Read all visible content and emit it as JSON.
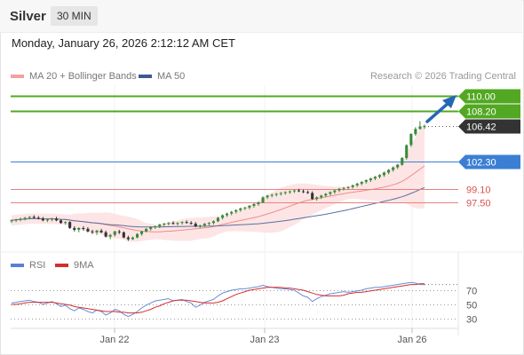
{
  "header": {
    "symbol": "Silver",
    "interval": "30 MIN",
    "datetime": "Monday, January 26, 2026 2:12:12 AM CET"
  },
  "legend": {
    "ma20_label": "MA 20 + Bollinger Bands",
    "ma50_label": "MA 50",
    "rsi_label": "RSI",
    "ma9_label": "9MA"
  },
  "credit": "Research © 2026 Trading Central",
  "colors": {
    "target": "#52a822",
    "support": "#3b7fd4",
    "resistance_low": "#e8827f",
    "current": "#333333",
    "bollinger_fill": "#fde0e0",
    "ma20": "#f08c8a",
    "ma50": "#5c6f9e",
    "bull": "#3a8a3a",
    "bear": "#333333",
    "rsi": "#6b8bd6",
    "rsi_ma": "#d32f2f",
    "arrow": "#2566b7"
  },
  "chart_data": [
    {
      "type": "candlestick",
      "yaxis_visible": false,
      "levels": [
        {
          "value": 110.0,
          "label": "110.00",
          "kind": "target"
        },
        {
          "value": 108.2,
          "label": "108.20",
          "kind": "target"
        },
        {
          "value": 106.42,
          "label": "106.42",
          "kind": "current"
        },
        {
          "value": 102.3,
          "label": "102.30",
          "kind": "support"
        },
        {
          "value": 99.1,
          "label": "99.10",
          "kind": "support-minor"
        },
        {
          "value": 97.5,
          "label": "97.50",
          "kind": "support-minor"
        }
      ],
      "x_tick_labels": [
        "Jan 22",
        "Jan 23",
        "Jan 26"
      ],
      "candles": [
        [
          95.3,
          95.5,
          95.1,
          95.4
        ],
        [
          95.4,
          95.6,
          95.2,
          95.5
        ],
        [
          95.5,
          95.7,
          95.3,
          95.6
        ],
        [
          95.6,
          95.8,
          95.4,
          95.7
        ],
        [
          95.7,
          95.9,
          95.5,
          95.8
        ],
        [
          95.8,
          96.0,
          95.6,
          95.7
        ],
        [
          95.7,
          95.9,
          95.5,
          95.6
        ],
        [
          95.6,
          95.8,
          95.3,
          95.4
        ],
        [
          95.4,
          95.6,
          95.2,
          95.5
        ],
        [
          95.5,
          95.7,
          95.3,
          95.6
        ],
        [
          95.6,
          95.8,
          95.3,
          95.4
        ],
        [
          95.4,
          95.5,
          95.0,
          95.1
        ],
        [
          95.1,
          95.3,
          94.9,
          95.2
        ],
        [
          95.2,
          95.3,
          94.4,
          94.5
        ],
        [
          94.5,
          94.7,
          94.1,
          94.3
        ],
        [
          94.3,
          94.6,
          94.0,
          94.5
        ],
        [
          94.5,
          94.7,
          94.2,
          94.4
        ],
        [
          94.4,
          94.6,
          94.0,
          94.1
        ],
        [
          94.1,
          94.3,
          93.8,
          94.0
        ],
        [
          94.0,
          94.3,
          93.7,
          94.2
        ],
        [
          94.2,
          94.4,
          93.9,
          94.0
        ],
        [
          94.0,
          94.2,
          93.4,
          93.5
        ],
        [
          93.5,
          93.8,
          93.2,
          93.7
        ],
        [
          93.7,
          94.2,
          93.5,
          94.1
        ],
        [
          94.1,
          94.3,
          93.8,
          94.0
        ],
        [
          94.0,
          94.1,
          93.3,
          93.4
        ],
        [
          93.4,
          93.6,
          93.0,
          93.2
        ],
        [
          93.2,
          93.5,
          93.1,
          93.4
        ],
        [
          93.4,
          93.9,
          93.3,
          93.8
        ],
        [
          93.8,
          94.2,
          93.6,
          94.1
        ],
        [
          94.1,
          94.5,
          94.0,
          94.4
        ],
        [
          94.4,
          94.7,
          94.2,
          94.6
        ],
        [
          94.6,
          94.8,
          94.4,
          94.7
        ],
        [
          94.7,
          95.0,
          94.5,
          94.9
        ],
        [
          94.9,
          95.1,
          94.7,
          95.0
        ],
        [
          95.0,
          95.2,
          94.8,
          95.1
        ],
        [
          95.1,
          95.3,
          94.9,
          95.0
        ],
        [
          95.0,
          95.2,
          94.8,
          95.1
        ],
        [
          95.1,
          95.3,
          94.9,
          95.2
        ],
        [
          95.2,
          95.4,
          95.0,
          95.1
        ],
        [
          95.1,
          95.3,
          94.9,
          95.0
        ],
        [
          95.0,
          95.2,
          94.6,
          94.7
        ],
        [
          94.7,
          94.9,
          94.5,
          94.8
        ],
        [
          94.8,
          95.1,
          94.6,
          95.0
        ],
        [
          95.0,
          95.2,
          94.8,
          95.1
        ],
        [
          95.1,
          95.4,
          94.9,
          95.3
        ],
        [
          95.3,
          95.8,
          95.2,
          95.7
        ],
        [
          95.7,
          96.1,
          95.5,
          96.0
        ],
        [
          96.0,
          96.3,
          95.8,
          96.2
        ],
        [
          96.2,
          96.5,
          96.0,
          96.4
        ],
        [
          96.4,
          96.7,
          96.2,
          96.6
        ],
        [
          96.6,
          96.9,
          96.4,
          96.8
        ],
        [
          96.8,
          97.0,
          96.6,
          96.9
        ],
        [
          96.9,
          97.2,
          96.7,
          97.1
        ],
        [
          97.1,
          97.4,
          96.9,
          97.3
        ],
        [
          97.3,
          97.6,
          97.1,
          97.5
        ],
        [
          97.5,
          98.2,
          97.4,
          98.1
        ],
        [
          98.1,
          98.4,
          97.9,
          98.3
        ],
        [
          98.3,
          98.5,
          98.1,
          98.4
        ],
        [
          98.4,
          98.6,
          98.2,
          98.5
        ],
        [
          98.5,
          98.7,
          98.3,
          98.6
        ],
        [
          98.6,
          98.8,
          98.4,
          98.7
        ],
        [
          98.7,
          98.9,
          98.5,
          98.8
        ],
        [
          98.8,
          99.0,
          98.6,
          98.9
        ],
        [
          98.9,
          99.1,
          98.7,
          98.8
        ],
        [
          98.8,
          99.0,
          98.6,
          98.7
        ],
        [
          98.7,
          98.9,
          98.5,
          98.6
        ],
        [
          98.6,
          98.8,
          97.8,
          97.9
        ],
        [
          97.9,
          98.2,
          97.7,
          98.1
        ],
        [
          98.1,
          98.4,
          97.9,
          98.3
        ],
        [
          98.3,
          98.6,
          98.1,
          98.5
        ],
        [
          98.5,
          98.8,
          98.3,
          98.7
        ],
        [
          98.7,
          99.0,
          98.5,
          98.9
        ],
        [
          98.9,
          99.2,
          98.7,
          99.1
        ],
        [
          99.1,
          99.3,
          98.9,
          99.2
        ],
        [
          99.2,
          99.4,
          99.0,
          99.3
        ],
        [
          99.3,
          99.6,
          99.1,
          99.5
        ],
        [
          99.5,
          99.8,
          99.3,
          99.7
        ],
        [
          99.7,
          100.0,
          99.5,
          99.9
        ],
        [
          99.9,
          100.2,
          99.7,
          100.1
        ],
        [
          100.1,
          100.4,
          99.9,
          100.3
        ],
        [
          100.3,
          100.6,
          100.1,
          100.5
        ],
        [
          100.5,
          100.8,
          100.3,
          100.7
        ],
        [
          100.7,
          101.1,
          100.5,
          101.0
        ],
        [
          101.0,
          101.4,
          100.8,
          101.3
        ],
        [
          101.3,
          101.7,
          101.1,
          101.6
        ],
        [
          101.6,
          102.0,
          101.4,
          101.9
        ],
        [
          101.9,
          102.8,
          101.8,
          102.7
        ],
        [
          102.7,
          104.3,
          102.5,
          104.2
        ],
        [
          104.2,
          105.6,
          104.0,
          105.5
        ],
        [
          105.5,
          106.3,
          105.3,
          106.1
        ],
        [
          106.1,
          107.0,
          106.0,
          106.4
        ],
        [
          106.4,
          106.6,
          106.1,
          106.42
        ]
      ]
    },
    {
      "type": "line",
      "title": "RSI",
      "y_ticks": [
        70,
        50,
        30
      ],
      "series": [
        {
          "name": "RSI",
          "values": [
            52,
            53,
            54,
            55,
            56,
            54,
            53,
            50,
            52,
            54,
            51,
            47,
            49,
            44,
            41,
            45,
            43,
            40,
            38,
            42,
            40,
            35,
            38,
            43,
            41,
            36,
            33,
            36,
            40,
            45,
            49,
            52,
            55,
            56,
            57,
            58,
            55,
            56,
            57,
            54,
            52,
            46,
            49,
            53,
            55,
            57,
            62,
            66,
            68,
            70,
            71,
            72,
            72,
            73,
            74,
            75,
            77,
            75,
            74,
            73,
            72,
            72,
            71,
            70,
            66,
            62,
            60,
            54,
            58,
            61,
            63,
            65,
            66,
            67,
            68,
            67,
            68,
            69,
            70,
            72,
            73,
            74,
            74,
            75,
            76,
            77,
            78,
            79,
            80,
            81,
            80,
            78,
            78
          ]
        },
        {
          "name": "9MA",
          "values": [
            50,
            50,
            51,
            52,
            53,
            53,
            53,
            53,
            53,
            53,
            52,
            51,
            50,
            49,
            47,
            46,
            45,
            44,
            43,
            42,
            41,
            40,
            40,
            40,
            39,
            39,
            38,
            38,
            38,
            39,
            41,
            43,
            46,
            48,
            51,
            53,
            55,
            56,
            56,
            56,
            55,
            54,
            53,
            52,
            52,
            52,
            53,
            55,
            58,
            61,
            64,
            66,
            68,
            70,
            71,
            72,
            73,
            74,
            74,
            74,
            74,
            73,
            73,
            72,
            71,
            70,
            68,
            66,
            64,
            63,
            62,
            62,
            62,
            62,
            63,
            65,
            66,
            67,
            67,
            68,
            69,
            70,
            71,
            72,
            73,
            74,
            75,
            76,
            77,
            78,
            78,
            79,
            79
          ]
        }
      ]
    }
  ]
}
